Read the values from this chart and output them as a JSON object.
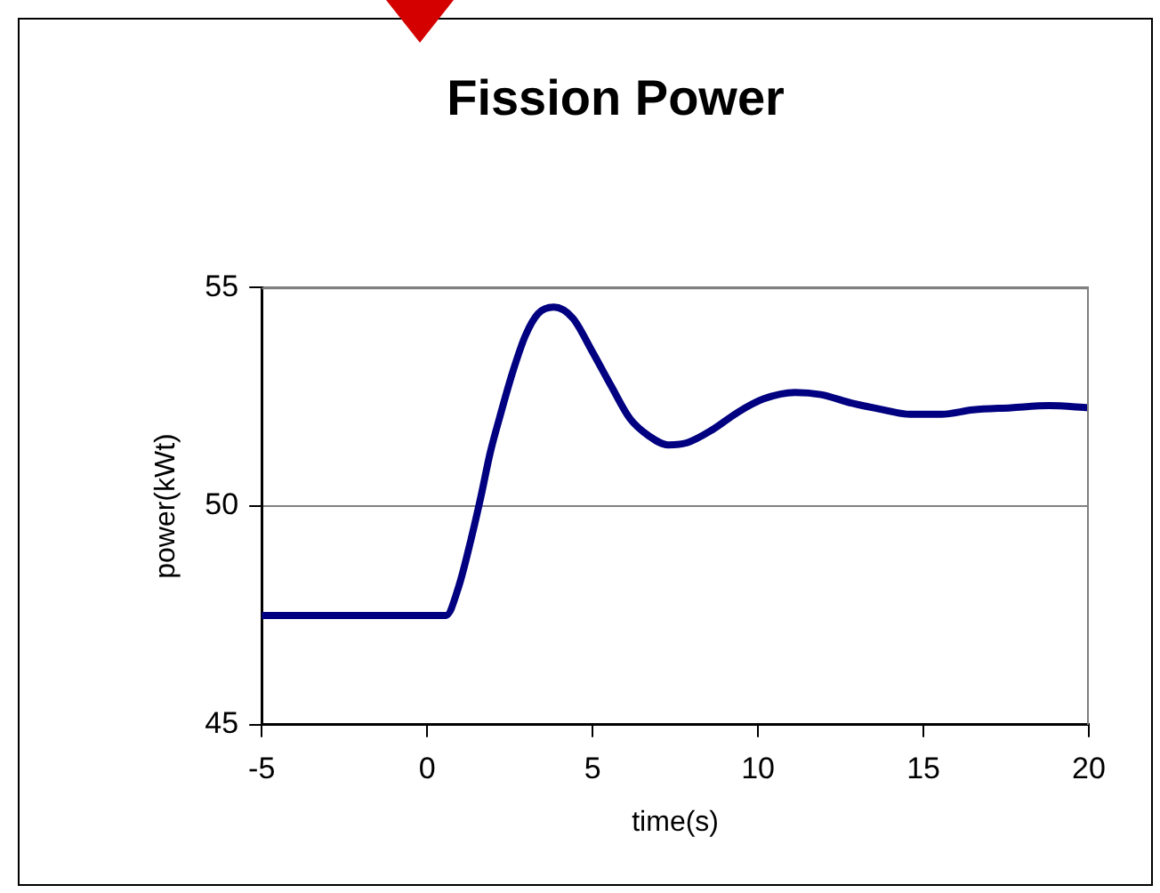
{
  "chart_data": {
    "type": "line",
    "title": "Fission Power",
    "xlabel": "time(s)",
    "ylabel": "power(kWt)",
    "x": [
      -5,
      0.57,
      0.95,
      1.33,
      1.62,
      1.9,
      2.2,
      2.58,
      2.97,
      3.35,
      3.83,
      4.4,
      4.98,
      5.56,
      6.13,
      6.71,
      7.28,
      7.86,
      8.63,
      9.4,
      10.16,
      11.12,
      11.9,
      12.85,
      13.8,
      14.58,
      15.54,
      16.5,
      17.65,
      18.8,
      20
    ],
    "series": [
      {
        "color": "#000080",
        "values": [
          47.5,
          47.5,
          48.15,
          49.25,
          50.2,
          51.2,
          52.05,
          53.05,
          53.9,
          54.4,
          54.55,
          54.3,
          53.55,
          52.75,
          52.0,
          51.6,
          51.4,
          51.45,
          51.75,
          52.15,
          52.45,
          52.6,
          52.55,
          52.35,
          52.2,
          52.1,
          52.1,
          52.2,
          52.25,
          52.3,
          52.25
        ]
      }
    ],
    "xlim": [
      -5,
      20
    ],
    "xticks": [
      -5,
      0,
      5,
      10,
      15,
      20
    ],
    "ylim": [
      45,
      55
    ],
    "yticks": [
      45,
      50,
      55
    ],
    "grid": "y",
    "legend": false,
    "marker": "none",
    "line_style": "solid"
  }
}
